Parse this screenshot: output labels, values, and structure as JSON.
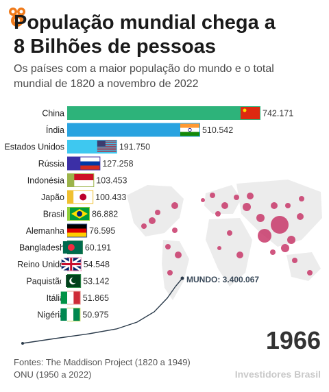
{
  "header": {
    "title_line1": "População mundial chega a",
    "title_line2": "8 Bilhões de pessoas",
    "subtitle_line1": "Os países com a maior população do mundo e o total",
    "subtitle_line2": "mundial de 1820 a novembro de 2022"
  },
  "year": "1966",
  "world_label": "MUNDO: 3.400.067",
  "footer": {
    "sources_line1": "Fontes: The Maddison Project (1820 a 1949)",
    "sources_line2": "ONU (1950 a 2022)",
    "brand": "Investidores Brasil"
  },
  "colors": {
    "china": "#2db37a",
    "india": "#29a3e0",
    "usa": "#3ec8f0",
    "russia": "#3b2fa6",
    "indonesia": "#9cb44a",
    "japan": "#f0c030",
    "brazil": "#8fcf3a",
    "germany": "#2d4a8a",
    "bangladesh": "#1f7a4a",
    "uk": "#e06a9a",
    "pakistan": "#2f8a4a",
    "italy": "#e8a09a",
    "nigeria": "#c4d85a",
    "map_land": "#ececec",
    "map_dot": "#c8386a",
    "world_line": "#2a3a4a"
  },
  "chart_data": {
    "type": "bar",
    "orientation": "horizontal",
    "unit": "mil pessoas",
    "categories": [
      "China",
      "Índia",
      "Estados Unidos",
      "Rússia",
      "Indonésia",
      "Japão",
      "Brasil",
      "Alemanha",
      "Bangladesh",
      "Reino Unido",
      "Paquistão",
      "Itália",
      "Nigéria"
    ],
    "values": [
      742171,
      510542,
      191750,
      127258,
      103453,
      100433,
      86882,
      76595,
      60191,
      54548,
      53142,
      51865,
      50975
    ],
    "value_labels": [
      "742.171",
      "510.542",
      "191.750",
      "127.258",
      "103.453",
      "100.433",
      "86.882",
      "76.595",
      "60.191",
      "54.548",
      "53.142",
      "51.865",
      "50.975"
    ],
    "flags": [
      "china-flag-icon",
      "india-flag-icon",
      "usa-flag-icon",
      "russia-flag-icon",
      "indonesia-flag-icon",
      "japan-flag-icon",
      "brazil-flag-icon",
      "germany-flag-icon",
      "bangladesh-flag-icon",
      "uk-flag-icon",
      "pakistan-flag-icon",
      "italy-flag-icon",
      "nigeria-flag-icon"
    ],
    "world_series": {
      "name": "MUNDO",
      "latest_value": 3400067
    }
  }
}
